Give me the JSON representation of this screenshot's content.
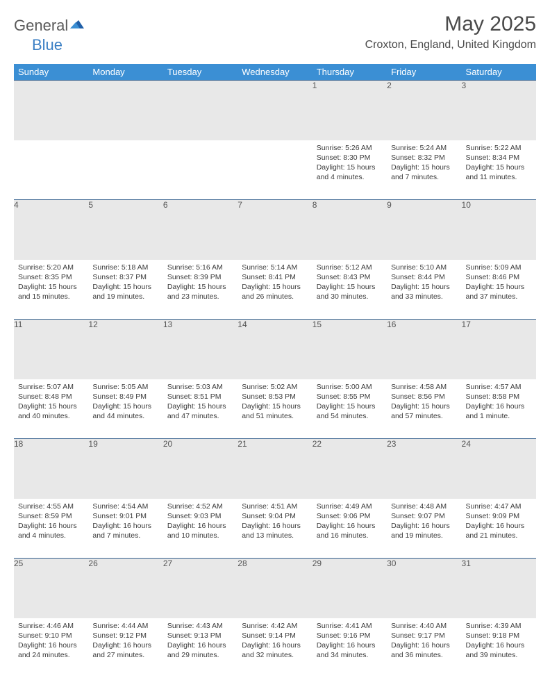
{
  "brand": {
    "part1": "General",
    "part2": "Blue"
  },
  "title": "May 2025",
  "location": "Croxton, England, United Kingdom",
  "colors": {
    "header_bg": "#3b8fd4",
    "header_text": "#ffffff",
    "daynum_bg": "#e8e8e8",
    "border": "#2f5b8a",
    "logo_blue": "#3b7fc4",
    "logo_gray": "#5a5a5a"
  },
  "weekdays": [
    "Sunday",
    "Monday",
    "Tuesday",
    "Wednesday",
    "Thursday",
    "Friday",
    "Saturday"
  ],
  "weeks": [
    [
      {
        "n": "",
        "body": ""
      },
      {
        "n": "",
        "body": ""
      },
      {
        "n": "",
        "body": ""
      },
      {
        "n": "",
        "body": ""
      },
      {
        "n": "1",
        "body": "Sunrise: 5:26 AM\nSunset: 8:30 PM\nDaylight: 15 hours and 4 minutes."
      },
      {
        "n": "2",
        "body": "Sunrise: 5:24 AM\nSunset: 8:32 PM\nDaylight: 15 hours and 7 minutes."
      },
      {
        "n": "3",
        "body": "Sunrise: 5:22 AM\nSunset: 8:34 PM\nDaylight: 15 hours and 11 minutes."
      }
    ],
    [
      {
        "n": "4",
        "body": "Sunrise: 5:20 AM\nSunset: 8:35 PM\nDaylight: 15 hours and 15 minutes."
      },
      {
        "n": "5",
        "body": "Sunrise: 5:18 AM\nSunset: 8:37 PM\nDaylight: 15 hours and 19 minutes."
      },
      {
        "n": "6",
        "body": "Sunrise: 5:16 AM\nSunset: 8:39 PM\nDaylight: 15 hours and 23 minutes."
      },
      {
        "n": "7",
        "body": "Sunrise: 5:14 AM\nSunset: 8:41 PM\nDaylight: 15 hours and 26 minutes."
      },
      {
        "n": "8",
        "body": "Sunrise: 5:12 AM\nSunset: 8:43 PM\nDaylight: 15 hours and 30 minutes."
      },
      {
        "n": "9",
        "body": "Sunrise: 5:10 AM\nSunset: 8:44 PM\nDaylight: 15 hours and 33 minutes."
      },
      {
        "n": "10",
        "body": "Sunrise: 5:09 AM\nSunset: 8:46 PM\nDaylight: 15 hours and 37 minutes."
      }
    ],
    [
      {
        "n": "11",
        "body": "Sunrise: 5:07 AM\nSunset: 8:48 PM\nDaylight: 15 hours and 40 minutes."
      },
      {
        "n": "12",
        "body": "Sunrise: 5:05 AM\nSunset: 8:49 PM\nDaylight: 15 hours and 44 minutes."
      },
      {
        "n": "13",
        "body": "Sunrise: 5:03 AM\nSunset: 8:51 PM\nDaylight: 15 hours and 47 minutes."
      },
      {
        "n": "14",
        "body": "Sunrise: 5:02 AM\nSunset: 8:53 PM\nDaylight: 15 hours and 51 minutes."
      },
      {
        "n": "15",
        "body": "Sunrise: 5:00 AM\nSunset: 8:55 PM\nDaylight: 15 hours and 54 minutes."
      },
      {
        "n": "16",
        "body": "Sunrise: 4:58 AM\nSunset: 8:56 PM\nDaylight: 15 hours and 57 minutes."
      },
      {
        "n": "17",
        "body": "Sunrise: 4:57 AM\nSunset: 8:58 PM\nDaylight: 16 hours and 1 minute."
      }
    ],
    [
      {
        "n": "18",
        "body": "Sunrise: 4:55 AM\nSunset: 8:59 PM\nDaylight: 16 hours and 4 minutes."
      },
      {
        "n": "19",
        "body": "Sunrise: 4:54 AM\nSunset: 9:01 PM\nDaylight: 16 hours and 7 minutes."
      },
      {
        "n": "20",
        "body": "Sunrise: 4:52 AM\nSunset: 9:03 PM\nDaylight: 16 hours and 10 minutes."
      },
      {
        "n": "21",
        "body": "Sunrise: 4:51 AM\nSunset: 9:04 PM\nDaylight: 16 hours and 13 minutes."
      },
      {
        "n": "22",
        "body": "Sunrise: 4:49 AM\nSunset: 9:06 PM\nDaylight: 16 hours and 16 minutes."
      },
      {
        "n": "23",
        "body": "Sunrise: 4:48 AM\nSunset: 9:07 PM\nDaylight: 16 hours and 19 minutes."
      },
      {
        "n": "24",
        "body": "Sunrise: 4:47 AM\nSunset: 9:09 PM\nDaylight: 16 hours and 21 minutes."
      }
    ],
    [
      {
        "n": "25",
        "body": "Sunrise: 4:46 AM\nSunset: 9:10 PM\nDaylight: 16 hours and 24 minutes."
      },
      {
        "n": "26",
        "body": "Sunrise: 4:44 AM\nSunset: 9:12 PM\nDaylight: 16 hours and 27 minutes."
      },
      {
        "n": "27",
        "body": "Sunrise: 4:43 AM\nSunset: 9:13 PM\nDaylight: 16 hours and 29 minutes."
      },
      {
        "n": "28",
        "body": "Sunrise: 4:42 AM\nSunset: 9:14 PM\nDaylight: 16 hours and 32 minutes."
      },
      {
        "n": "29",
        "body": "Sunrise: 4:41 AM\nSunset: 9:16 PM\nDaylight: 16 hours and 34 minutes."
      },
      {
        "n": "30",
        "body": "Sunrise: 4:40 AM\nSunset: 9:17 PM\nDaylight: 16 hours and 36 minutes."
      },
      {
        "n": "31",
        "body": "Sunrise: 4:39 AM\nSunset: 9:18 PM\nDaylight: 16 hours and 39 minutes."
      }
    ]
  ]
}
